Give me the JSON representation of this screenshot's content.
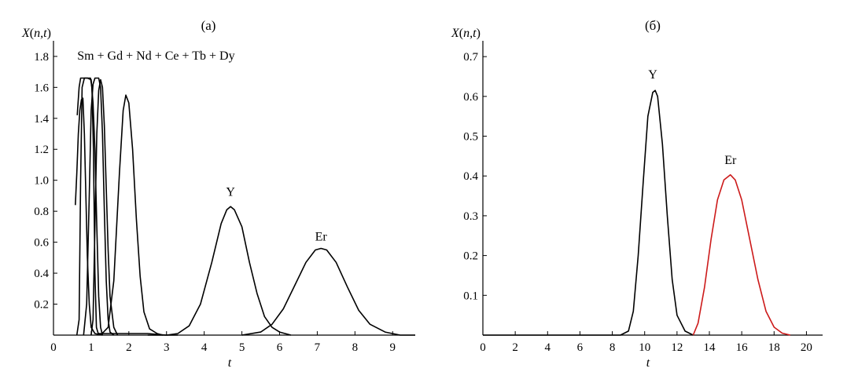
{
  "chart_data": [
    {
      "type": "line",
      "panel_label": "(a)",
      "ylabel": "X(n,t)",
      "xlabel": "t",
      "xlim": [
        0,
        9.6
      ],
      "ylim": [
        0,
        1.85
      ],
      "x_ticks": [
        0,
        1,
        2,
        3,
        4,
        5,
        6,
        7,
        8,
        9
      ],
      "y_ticks": [
        0.2,
        0.4,
        0.6,
        0.8,
        1.0,
        1.2,
        1.4,
        1.6,
        1.8
      ],
      "y_tick_labels": [
        "0.2",
        "0.4",
        "0.6",
        "0.8",
        "1.0",
        "1.2",
        "1.4",
        "1.6",
        "1.8"
      ],
      "grid": false,
      "annotations": [
        {
          "text": "Sm + Gd + Nd + Ce + Tb + Dy",
          "x": 0.63,
          "y": 1.78
        },
        {
          "text": "Y",
          "x": 4.7,
          "y": 0.9
        },
        {
          "text": "Er",
          "x": 7.1,
          "y": 0.61
        }
      ],
      "series": [
        {
          "color": "#000000",
          "points": [
            [
              0.58,
              0.84
            ],
            [
              0.62,
              1.05
            ],
            [
              0.66,
              1.3
            ],
            [
              0.7,
              1.45
            ],
            [
              0.74,
              1.52
            ],
            [
              0.78,
              1.53
            ],
            [
              0.82,
              1.3
            ],
            [
              0.86,
              0.9
            ],
            [
              0.9,
              0.5
            ],
            [
              0.95,
              0.2
            ],
            [
              1.0,
              0.05
            ],
            [
              1.1,
              0.01
            ],
            [
              1.3,
              0.0
            ]
          ]
        },
        {
          "color": "#000000",
          "points": [
            [
              0.62,
              0.0
            ],
            [
              0.68,
              0.1
            ],
            [
              0.72,
              1.0
            ],
            [
              0.76,
              1.6
            ],
            [
              0.82,
              1.66
            ],
            [
              0.9,
              1.66
            ],
            [
              0.98,
              1.66
            ],
            [
              1.02,
              1.6
            ],
            [
              1.06,
              1.2
            ],
            [
              1.1,
              0.4
            ],
            [
              1.14,
              0.05
            ],
            [
              1.2,
              0.0
            ]
          ]
        },
        {
          "color": "#000000",
          "points": [
            [
              0.63,
              1.42
            ],
            [
              0.68,
              1.6
            ],
            [
              0.72,
              1.66
            ],
            [
              0.8,
              1.66
            ],
            [
              0.9,
              1.66
            ],
            [
              1.0,
              1.65
            ],
            [
              1.05,
              1.5
            ],
            [
              1.1,
              1.2
            ],
            [
              1.15,
              0.7
            ],
            [
              1.2,
              0.25
            ],
            [
              1.25,
              0.05
            ],
            [
              1.3,
              0.0
            ]
          ]
        },
        {
          "color": "#000000",
          "points": [
            [
              0.8,
              0.0
            ],
            [
              0.88,
              0.2
            ],
            [
              0.95,
              0.9
            ],
            [
              1.0,
              1.45
            ],
            [
              1.05,
              1.62
            ],
            [
              1.1,
              1.66
            ],
            [
              1.15,
              1.66
            ],
            [
              1.2,
              1.66
            ],
            [
              1.25,
              1.6
            ],
            [
              1.3,
              1.3
            ],
            [
              1.35,
              0.8
            ],
            [
              1.4,
              0.35
            ],
            [
              1.45,
              0.1
            ],
            [
              1.5,
              0.02
            ],
            [
              1.6,
              0.0
            ]
          ]
        },
        {
          "color": "#000000",
          "points": [
            [
              1.0,
              0.0
            ],
            [
              1.05,
              0.1
            ],
            [
              1.1,
              0.7
            ],
            [
              1.15,
              1.3
            ],
            [
              1.2,
              1.58
            ],
            [
              1.25,
              1.65
            ],
            [
              1.3,
              1.6
            ],
            [
              1.35,
              1.35
            ],
            [
              1.4,
              0.95
            ],
            [
              1.45,
              0.55
            ],
            [
              1.5,
              0.25
            ],
            [
              1.6,
              0.05
            ],
            [
              1.7,
              0.0
            ]
          ]
        },
        {
          "color": "#000000",
          "points": [
            [
              1.25,
              0.0
            ],
            [
              1.45,
              0.05
            ],
            [
              1.6,
              0.35
            ],
            [
              1.75,
              1.05
            ],
            [
              1.85,
              1.45
            ],
            [
              1.92,
              1.55
            ],
            [
              2.0,
              1.5
            ],
            [
              2.1,
              1.2
            ],
            [
              2.2,
              0.75
            ],
            [
              2.3,
              0.38
            ],
            [
              2.4,
              0.15
            ],
            [
              2.55,
              0.04
            ],
            [
              2.75,
              0.01
            ],
            [
              2.9,
              0.0
            ]
          ]
        },
        {
          "color": "#000000",
          "points": [
            [
              1.2,
              0.01
            ],
            [
              2.5,
              0.01
            ],
            [
              3.0,
              0.0
            ],
            [
              3.3,
              0.0
            ]
          ]
        },
        {
          "color": "#000000",
          "points": [
            [
              2.5,
              0.0
            ],
            [
              3.0,
              0.0
            ],
            [
              3.3,
              0.01
            ],
            [
              3.6,
              0.06
            ],
            [
              3.9,
              0.2
            ],
            [
              4.2,
              0.47
            ],
            [
              4.45,
              0.72
            ],
            [
              4.6,
              0.81
            ],
            [
              4.7,
              0.83
            ],
            [
              4.8,
              0.81
            ],
            [
              5.0,
              0.7
            ],
            [
              5.2,
              0.47
            ],
            [
              5.4,
              0.27
            ],
            [
              5.6,
              0.12
            ],
            [
              5.8,
              0.05
            ],
            [
              6.0,
              0.02
            ],
            [
              6.3,
              0.0
            ]
          ]
        },
        {
          "color": "#000000",
          "points": [
            [
              5.0,
              0.0
            ],
            [
              5.5,
              0.02
            ],
            [
              5.8,
              0.07
            ],
            [
              6.1,
              0.17
            ],
            [
              6.4,
              0.32
            ],
            [
              6.7,
              0.47
            ],
            [
              6.95,
              0.55
            ],
            [
              7.1,
              0.56
            ],
            [
              7.25,
              0.55
            ],
            [
              7.5,
              0.47
            ],
            [
              7.8,
              0.31
            ],
            [
              8.1,
              0.16
            ],
            [
              8.4,
              0.07
            ],
            [
              8.8,
              0.02
            ],
            [
              9.2,
              0.0
            ],
            [
              9.6,
              0.0
            ]
          ]
        }
      ]
    },
    {
      "type": "line",
      "panel_label": "(б)",
      "ylabel": "X(n,t)",
      "xlabel": "t",
      "xlim": [
        0,
        21
      ],
      "ylim": [
        0,
        0.72
      ],
      "x_ticks": [
        0,
        2,
        4,
        6,
        8,
        10,
        12,
        14,
        16,
        18,
        20
      ],
      "y_ticks": [
        0.1,
        0.2,
        0.3,
        0.4,
        0.5,
        0.6,
        0.7
      ],
      "y_tick_labels": [
        "0.1",
        "0.2",
        "0.3",
        "0.4",
        "0.5",
        "0.6",
        "0.7"
      ],
      "grid": false,
      "annotations": [
        {
          "text": "Y",
          "x": 10.5,
          "y": 0.645
        },
        {
          "text": "Er",
          "x": 15.3,
          "y": 0.43
        }
      ],
      "series": [
        {
          "color": "#000000",
          "points": [
            [
              0.0,
              0.0
            ],
            [
              8.5,
              0.0
            ],
            [
              9.0,
              0.01
            ],
            [
              9.3,
              0.06
            ],
            [
              9.6,
              0.2
            ],
            [
              9.9,
              0.38
            ],
            [
              10.2,
              0.55
            ],
            [
              10.5,
              0.61
            ],
            [
              10.65,
              0.615
            ],
            [
              10.8,
              0.6
            ],
            [
              11.1,
              0.48
            ],
            [
              11.4,
              0.3
            ],
            [
              11.7,
              0.14
            ],
            [
              12.0,
              0.05
            ],
            [
              12.5,
              0.01
            ],
            [
              13.0,
              0.0
            ]
          ]
        },
        {
          "color": "#cc1a1a",
          "points": [
            [
              13.0,
              0.0
            ],
            [
              13.3,
              0.03
            ],
            [
              13.7,
              0.12
            ],
            [
              14.1,
              0.24
            ],
            [
              14.5,
              0.34
            ],
            [
              14.9,
              0.39
            ],
            [
              15.3,
              0.403
            ],
            [
              15.6,
              0.39
            ],
            [
              16.0,
              0.34
            ],
            [
              16.5,
              0.24
            ],
            [
              17.0,
              0.14
            ],
            [
              17.5,
              0.06
            ],
            [
              18.0,
              0.02
            ],
            [
              18.5,
              0.005
            ],
            [
              19.0,
              0.0
            ]
          ]
        }
      ]
    }
  ]
}
